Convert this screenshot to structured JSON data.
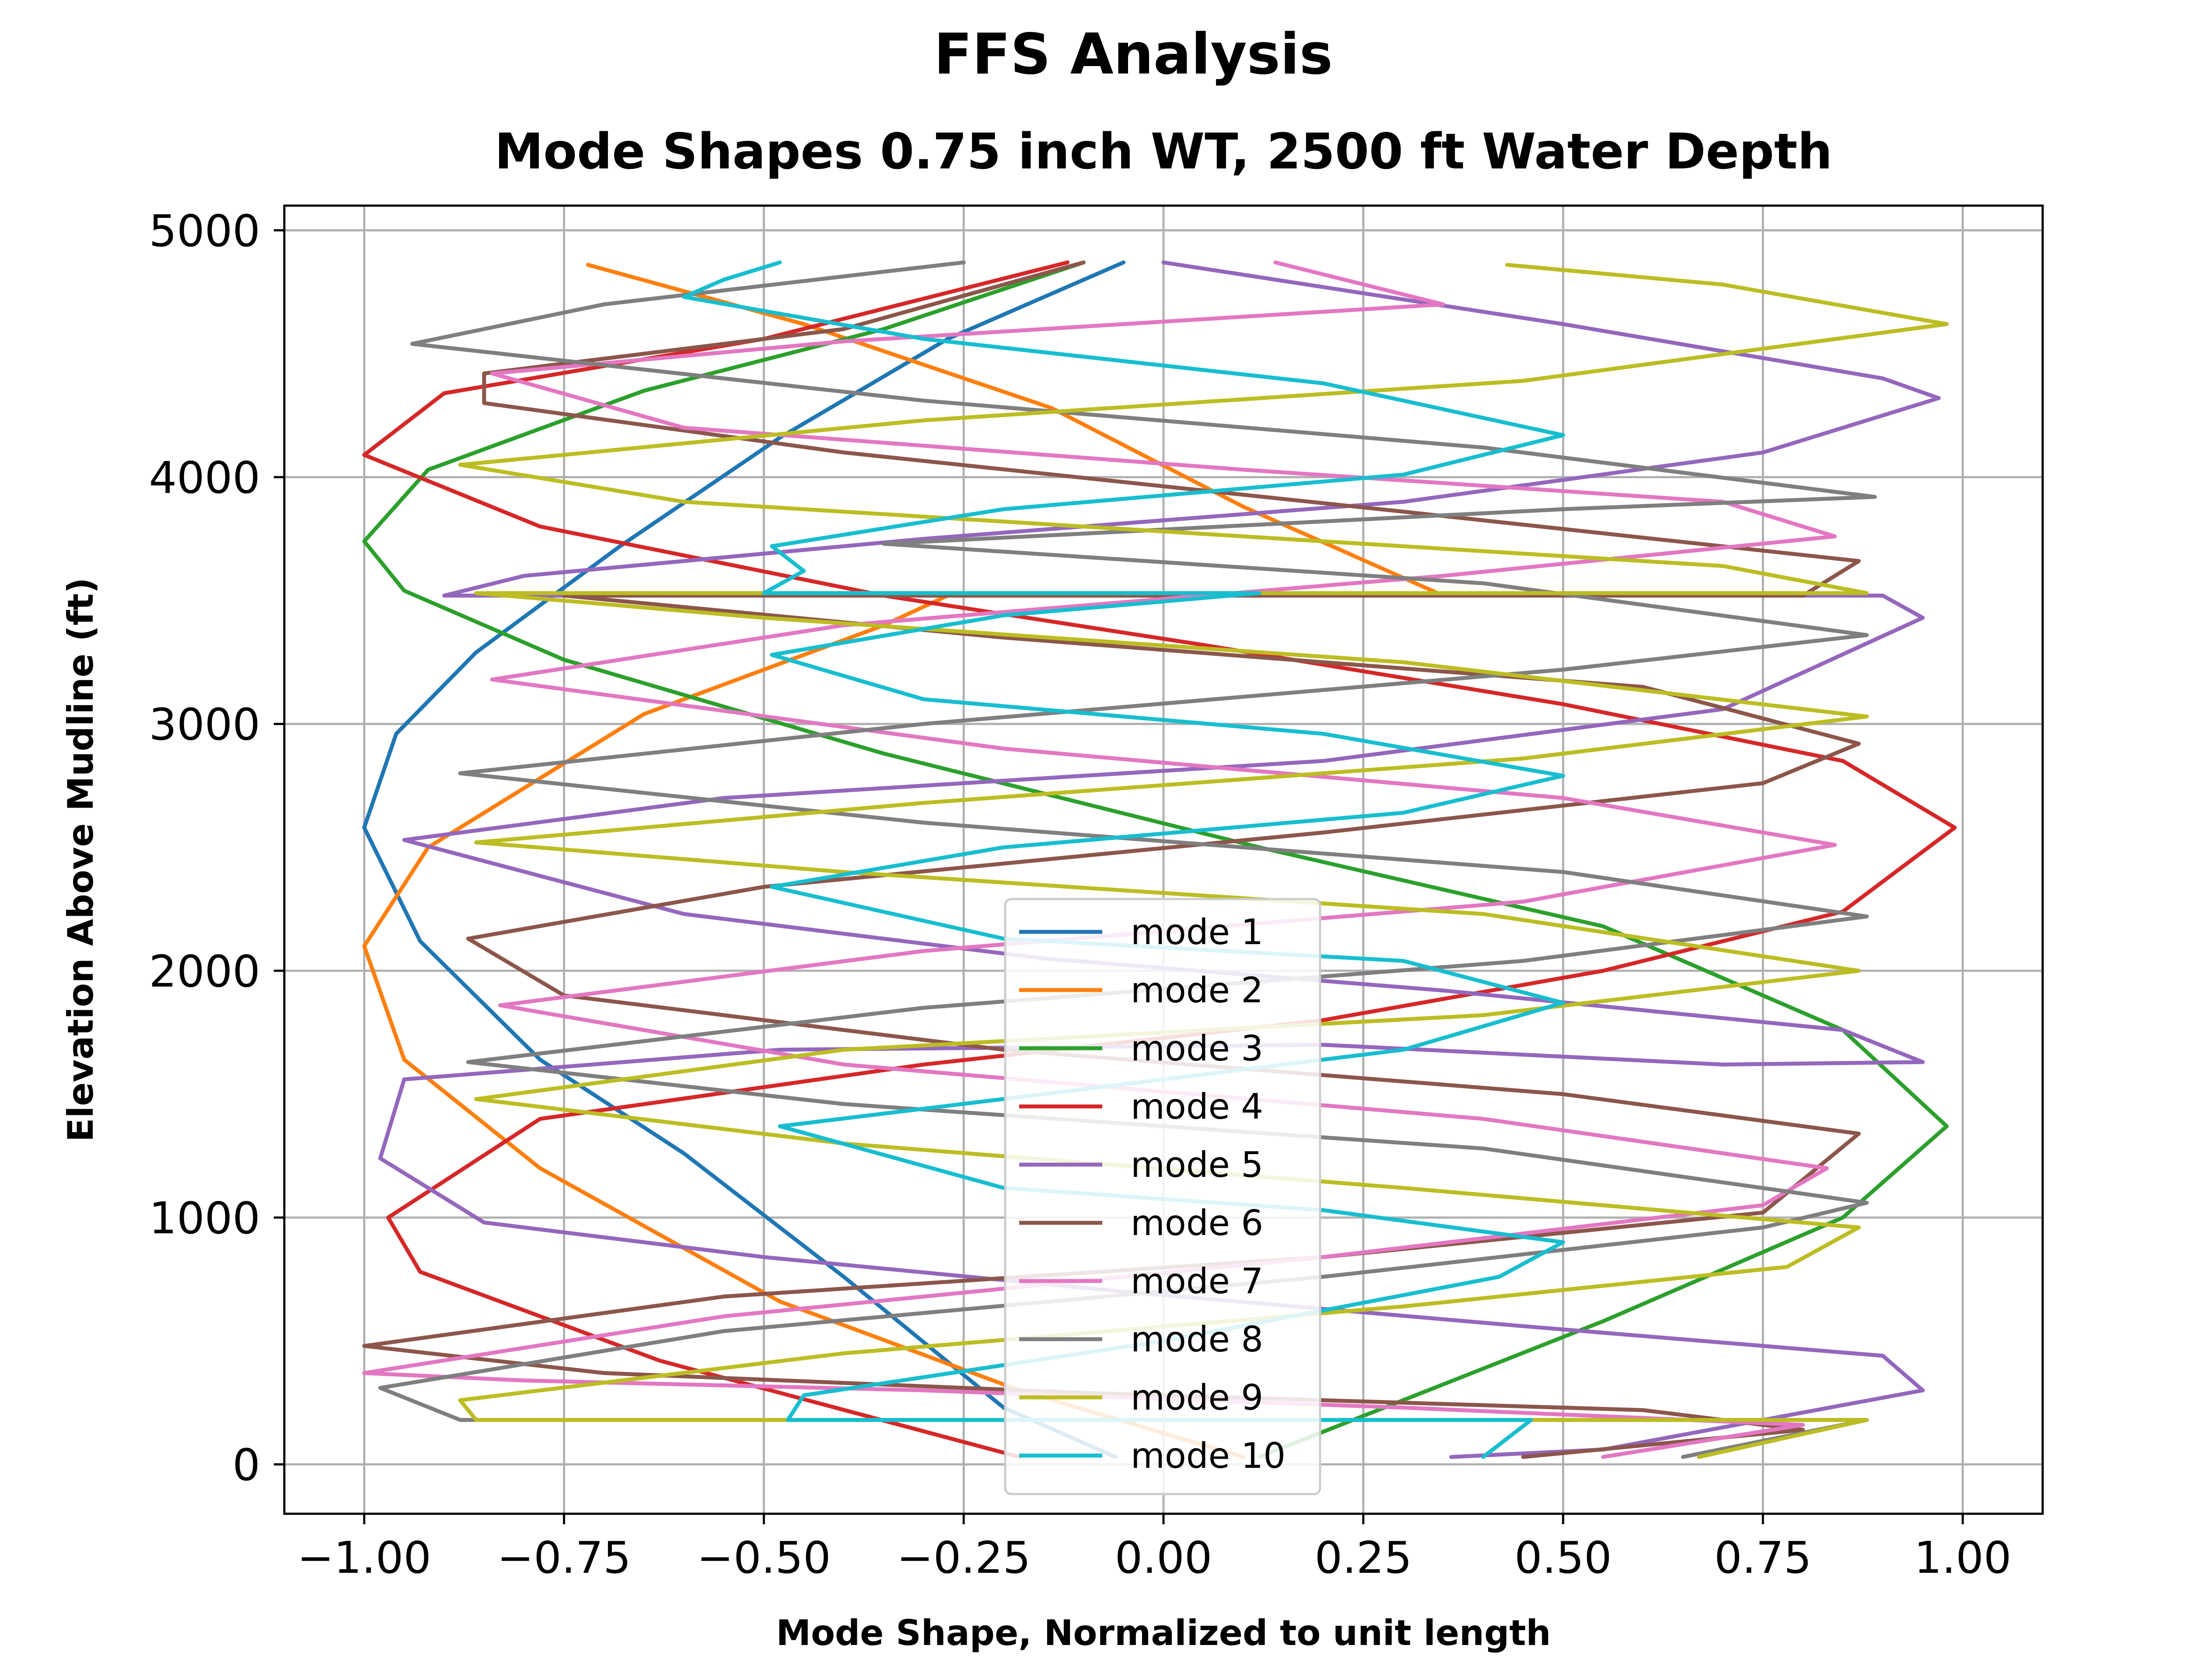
{
  "chart_data": {
    "type": "line",
    "suptitle": "FFS Analysis",
    "title": "Mode Shapes 0.75 inch WT, 2500 ft Water Depth",
    "xlabel": "Mode Shape, Normalized to unit length",
    "ylabel": "Elevation Above Mudline (ft)",
    "xlim": [
      -1.1,
      1.1
    ],
    "ylim": [
      -200,
      5100
    ],
    "xticks": [
      -1.0,
      -0.75,
      -0.5,
      -0.25,
      0.0,
      0.25,
      0.5,
      0.75,
      1.0
    ],
    "xtick_labels": [
      "−1.00",
      "−0.75",
      "−0.50",
      "−0.25",
      "0.00",
      "0.25",
      "0.50",
      "0.75",
      "1.00"
    ],
    "yticks": [
      0,
      1000,
      2000,
      3000,
      4000,
      5000
    ],
    "ytick_labels": [
      "0",
      "1000",
      "2000",
      "3000",
      "4000",
      "5000"
    ],
    "grid": true,
    "legend_position": "bottom-center",
    "series": [
      {
        "name": "mode 1",
        "color": "#1f77b4",
        "points": [
          [
            -0.06,
            30
          ],
          [
            -0.2,
            230
          ],
          [
            -0.4,
            760
          ],
          [
            -0.6,
            1260
          ],
          [
            -0.78,
            1640
          ],
          [
            -0.93,
            2120
          ],
          [
            -1.0,
            2580
          ],
          [
            -0.96,
            2960
          ],
          [
            -0.86,
            3290
          ],
          [
            -0.68,
            3720
          ],
          [
            -0.48,
            4160
          ],
          [
            -0.27,
            4560
          ],
          [
            -0.05,
            4870
          ]
        ]
      },
      {
        "name": "mode 2",
        "color": "#ff7f0e",
        "points": [
          [
            0.1,
            30
          ],
          [
            -0.18,
            300
          ],
          [
            -0.48,
            660
          ],
          [
            -0.78,
            1200
          ],
          [
            -0.95,
            1640
          ],
          [
            -1.0,
            2100
          ],
          [
            -0.92,
            2500
          ],
          [
            -0.65,
            3040
          ],
          [
            -0.35,
            3400
          ],
          [
            -0.27,
            3520
          ],
          [
            0.35,
            3520
          ],
          [
            0.1,
            3880
          ],
          [
            -0.14,
            4280
          ],
          [
            -0.45,
            4620
          ],
          [
            -0.72,
            4860
          ]
        ]
      },
      {
        "name": "mode 3",
        "color": "#2ca02c",
        "points": [
          [
            0.12,
            30
          ],
          [
            0.55,
            580
          ],
          [
            0.85,
            1000
          ],
          [
            0.98,
            1370
          ],
          [
            0.85,
            1760
          ],
          [
            0.55,
            2180
          ],
          [
            0.12,
            2500
          ],
          [
            -0.35,
            2880
          ],
          [
            -0.75,
            3260
          ],
          [
            -0.95,
            3540
          ],
          [
            -1.0,
            3740
          ],
          [
            -0.92,
            4030
          ],
          [
            -0.65,
            4350
          ],
          [
            -0.35,
            4600
          ],
          [
            -0.1,
            4870
          ]
        ]
      },
      {
        "name": "mode 4",
        "color": "#d62728",
        "points": [
          [
            -0.18,
            30
          ],
          [
            -0.63,
            420
          ],
          [
            -0.93,
            780
          ],
          [
            -0.97,
            1000
          ],
          [
            -0.78,
            1400
          ],
          [
            -0.3,
            1620
          ],
          [
            0.2,
            1800
          ],
          [
            0.55,
            2000
          ],
          [
            0.85,
            2240
          ],
          [
            0.99,
            2580
          ],
          [
            0.85,
            2850
          ],
          [
            0.5,
            3080
          ],
          [
            0.05,
            3320
          ],
          [
            -0.35,
            3520
          ],
          [
            -0.78,
            3800
          ],
          [
            -1.0,
            4090
          ],
          [
            -0.9,
            4340
          ],
          [
            -0.5,
            4560
          ],
          [
            -0.12,
            4870
          ]
        ]
      },
      {
        "name": "mode 5",
        "color": "#9467bd",
        "points": [
          [
            0.36,
            30
          ],
          [
            0.55,
            60
          ],
          [
            0.95,
            300
          ],
          [
            0.9,
            440
          ],
          [
            0.45,
            560
          ],
          [
            -0.05,
            700
          ],
          [
            -0.5,
            840
          ],
          [
            -0.85,
            980
          ],
          [
            -0.98,
            1240
          ],
          [
            -0.95,
            1560
          ],
          [
            -0.48,
            1680
          ],
          [
            0.2,
            1700
          ],
          [
            0.7,
            1620
          ],
          [
            0.95,
            1630
          ],
          [
            0.85,
            1760
          ],
          [
            0.35,
            1920
          ],
          [
            -0.15,
            2050
          ],
          [
            -0.6,
            2230
          ],
          [
            -0.95,
            2530
          ],
          [
            -0.55,
            2700
          ],
          [
            0.2,
            2850
          ],
          [
            0.7,
            3060
          ],
          [
            0.95,
            3430
          ],
          [
            0.9,
            3520
          ],
          [
            -0.9,
            3520
          ],
          [
            -0.8,
            3600
          ],
          [
            -0.3,
            3750
          ],
          [
            0.3,
            3900
          ],
          [
            0.75,
            4100
          ],
          [
            0.97,
            4320
          ],
          [
            0.9,
            4400
          ],
          [
            0.5,
            4620
          ],
          [
            0.0,
            4870
          ]
        ]
      },
      {
        "name": "mode 6",
        "color": "#8c564b",
        "points": [
          [
            0.45,
            30
          ],
          [
            0.8,
            140
          ],
          [
            0.6,
            220
          ],
          [
            -0.1,
            290
          ],
          [
            -0.7,
            370
          ],
          [
            -1.0,
            480
          ],
          [
            -0.55,
            680
          ],
          [
            0.2,
            840
          ],
          [
            0.75,
            1020
          ],
          [
            0.87,
            1340
          ],
          [
            0.5,
            1500
          ],
          [
            -0.2,
            1680
          ],
          [
            -0.75,
            1900
          ],
          [
            -0.87,
            2130
          ],
          [
            -0.5,
            2340
          ],
          [
            0.2,
            2560
          ],
          [
            0.75,
            2760
          ],
          [
            0.87,
            2920
          ],
          [
            0.6,
            3150
          ],
          [
            -0.2,
            3350
          ],
          [
            -0.75,
            3520
          ],
          [
            0.8,
            3520
          ],
          [
            0.87,
            3660
          ],
          [
            0.3,
            3860
          ],
          [
            -0.4,
            4100
          ],
          [
            -0.85,
            4300
          ],
          [
            -0.85,
            4420
          ],
          [
            -0.4,
            4600
          ],
          [
            -0.1,
            4870
          ]
        ]
      },
      {
        "name": "mode 7",
        "color": "#e377c2",
        "points": [
          [
            0.55,
            30
          ],
          [
            0.8,
            160
          ],
          [
            0.3,
            230
          ],
          [
            -0.3,
            300
          ],
          [
            -0.8,
            340
          ],
          [
            -1.0,
            370
          ],
          [
            -0.55,
            600
          ],
          [
            0.2,
            840
          ],
          [
            0.75,
            1050
          ],
          [
            0.83,
            1200
          ],
          [
            0.4,
            1400
          ],
          [
            -0.4,
            1620
          ],
          [
            -0.83,
            1860
          ],
          [
            -0.3,
            2080
          ],
          [
            0.45,
            2280
          ],
          [
            0.84,
            2510
          ],
          [
            0.5,
            2700
          ],
          [
            -0.2,
            2900
          ],
          [
            -0.84,
            3180
          ],
          [
            -0.4,
            3400
          ],
          [
            0.35,
            3600
          ],
          [
            0.84,
            3760
          ],
          [
            0.7,
            3900
          ],
          [
            0.1,
            4030
          ],
          [
            -0.6,
            4200
          ],
          [
            -0.84,
            4420
          ],
          [
            -0.4,
            4550
          ],
          [
            0.35,
            4700
          ],
          [
            0.14,
            4870
          ]
        ]
      },
      {
        "name": "mode 8",
        "color": "#7f7f7f",
        "points": [
          [
            0.65,
            30
          ],
          [
            0.88,
            180
          ],
          [
            -0.88,
            180
          ],
          [
            -0.98,
            310
          ],
          [
            -0.55,
            540
          ],
          [
            0.2,
            760
          ],
          [
            0.75,
            960
          ],
          [
            0.88,
            1060
          ],
          [
            0.4,
            1280
          ],
          [
            -0.4,
            1460
          ],
          [
            -0.87,
            1630
          ],
          [
            -0.3,
            1850
          ],
          [
            0.45,
            2040
          ],
          [
            0.88,
            2220
          ],
          [
            0.5,
            2400
          ],
          [
            -0.3,
            2600
          ],
          [
            -0.88,
            2800
          ],
          [
            -0.3,
            3000
          ],
          [
            0.5,
            3220
          ],
          [
            0.88,
            3360
          ],
          [
            0.4,
            3570
          ],
          [
            -0.35,
            3730
          ],
          [
            0.5,
            3870
          ],
          [
            0.89,
            3920
          ],
          [
            0.4,
            4120
          ],
          [
            -0.3,
            4310
          ],
          [
            -0.94,
            4540
          ],
          [
            -0.7,
            4700
          ],
          [
            -0.25,
            4870
          ]
        ]
      },
      {
        "name": "mode 9",
        "color": "#bcbd22",
        "points": [
          [
            0.67,
            30
          ],
          [
            0.88,
            180
          ],
          [
            -0.86,
            180
          ],
          [
            -0.88,
            260
          ],
          [
            -0.4,
            450
          ],
          [
            0.3,
            640
          ],
          [
            0.78,
            800
          ],
          [
            0.87,
            960
          ],
          [
            0.3,
            1120
          ],
          [
            -0.4,
            1300
          ],
          [
            -0.86,
            1480
          ],
          [
            -0.4,
            1680
          ],
          [
            0.4,
            1820
          ],
          [
            0.87,
            2000
          ],
          [
            0.4,
            2230
          ],
          [
            -0.4,
            2400
          ],
          [
            -0.86,
            2520
          ],
          [
            -0.3,
            2680
          ],
          [
            0.45,
            2860
          ],
          [
            0.88,
            3030
          ],
          [
            0.3,
            3250
          ],
          [
            -0.5,
            3430
          ],
          [
            -0.86,
            3530
          ],
          [
            0.88,
            3530
          ],
          [
            0.7,
            3640
          ],
          [
            0.0,
            3780
          ],
          [
            -0.6,
            3900
          ],
          [
            -0.88,
            4050
          ],
          [
            -0.3,
            4230
          ],
          [
            0.45,
            4390
          ],
          [
            0.98,
            4620
          ],
          [
            0.7,
            4780
          ],
          [
            0.43,
            4860
          ]
        ]
      },
      {
        "name": "mode 10",
        "color": "#17becf",
        "points": [
          [
            0.4,
            30
          ],
          [
            0.46,
            180
          ],
          [
            -0.47,
            180
          ],
          [
            -0.45,
            280
          ],
          [
            0.0,
            500
          ],
          [
            0.42,
            760
          ],
          [
            0.5,
            900
          ],
          [
            0.2,
            1030
          ],
          [
            -0.2,
            1120
          ],
          [
            -0.48,
            1370
          ],
          [
            -0.1,
            1520
          ],
          [
            0.3,
            1680
          ],
          [
            0.5,
            1870
          ],
          [
            0.3,
            2040
          ],
          [
            -0.2,
            2130
          ],
          [
            -0.49,
            2340
          ],
          [
            -0.2,
            2500
          ],
          [
            0.3,
            2640
          ],
          [
            0.5,
            2790
          ],
          [
            0.2,
            2960
          ],
          [
            -0.3,
            3100
          ],
          [
            -0.49,
            3280
          ],
          [
            -0.2,
            3440
          ],
          [
            0.12,
            3530
          ],
          [
            -0.5,
            3530
          ],
          [
            -0.45,
            3620
          ],
          [
            -0.49,
            3720
          ],
          [
            -0.2,
            3870
          ],
          [
            0.3,
            4010
          ],
          [
            0.5,
            4170
          ],
          [
            0.2,
            4380
          ],
          [
            -0.3,
            4560
          ],
          [
            -0.6,
            4730
          ],
          [
            -0.55,
            4800
          ],
          [
            -0.48,
            4870
          ]
        ]
      }
    ]
  }
}
